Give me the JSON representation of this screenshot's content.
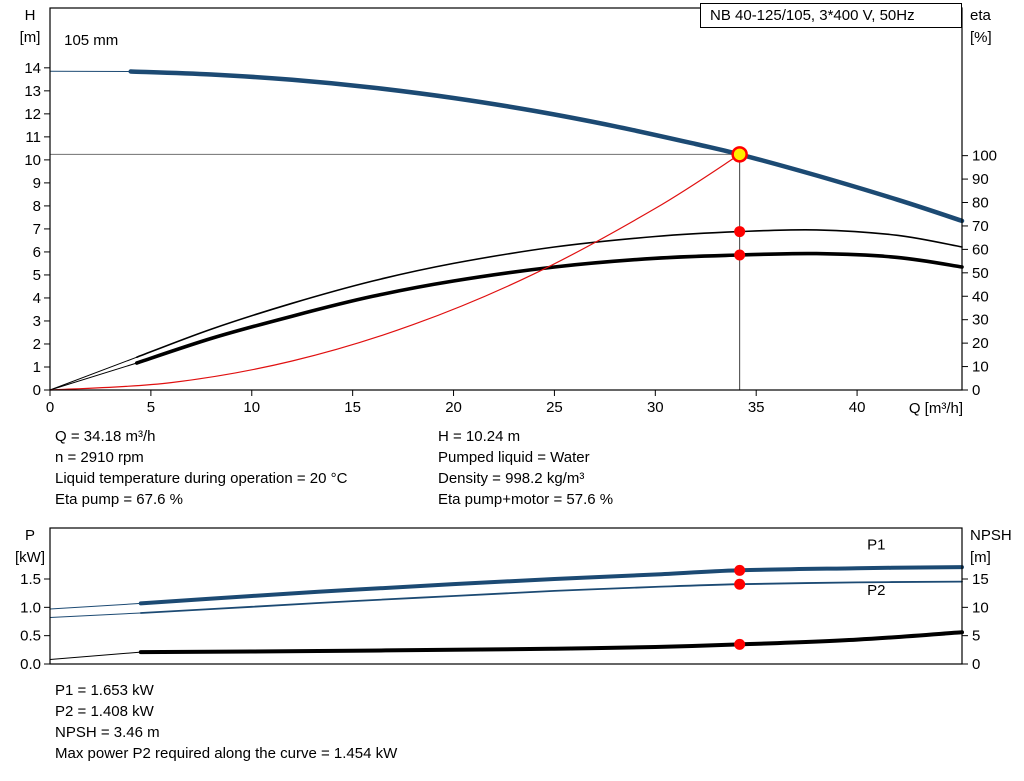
{
  "title_box": "NB 40-125/105, 3*400 V, 50Hz",
  "results_top": {
    "left": [
      "Q = 34.18 m³/h",
      "n = 2910 rpm",
      "Liquid temperature during operation = 20 °C",
      "Eta pump = 67.6 %"
    ],
    "right": [
      "H = 10.24 m",
      "Pumped liquid = Water",
      "Density = 998.2 kg/m³",
      "Eta pump+motor = 57.6 %"
    ]
  },
  "results_bottom": [
    "P1 = 1.653 kW",
    "P2 = 1.408 kW",
    "NPSH = 3.46 m",
    "Max power P2 required along the curve = 1.454 kW"
  ],
  "colors": {
    "curve_blue": "#1c4a73",
    "curve_black": "#000000",
    "system_red": "#e01010",
    "marker_red": "#ff0000",
    "duty_fill": "#ffee00",
    "ref_gray": "#707070",
    "label_blue": "#2a5caa"
  },
  "chart_data": [
    {
      "type": "line",
      "title": "NB 40-125/105, 3*400 V, 50Hz",
      "xlabel": "Q [m³/h]",
      "xlim": [
        0,
        45.2
      ],
      "x_ticks": [
        0,
        5,
        10,
        15,
        20,
        25,
        30,
        35,
        40
      ],
      "left_axis": {
        "label": "H",
        "unit": "[m]",
        "lim": [
          0,
          16.6
        ],
        "ticks": [
          0,
          1,
          2,
          3,
          4,
          5,
          6,
          7,
          8,
          9,
          10,
          11,
          12,
          13,
          14
        ]
      },
      "right_axis": {
        "label": "eta",
        "unit": "[%]",
        "lim": [
          0,
          163
        ],
        "ticks": [
          0,
          10,
          20,
          30,
          40,
          50,
          60,
          70,
          80,
          90,
          100
        ]
      },
      "grid": false,
      "curve_labels": [
        {
          "text": "105 mm",
          "x": 0.7,
          "y": 15.0,
          "axis": "left",
          "color": "#000000"
        }
      ],
      "ref_lines": {
        "q": 34.18,
        "h": 10.24
      },
      "series": [
        {
          "name": "head-curve-105mm",
          "axis": "left",
          "color": "curve_blue",
          "width": 4.5,
          "lead": {
            "x": [
              0,
              4
            ],
            "y": [
              13.85,
              13.84
            ]
          },
          "x": [
            4,
            8,
            12,
            16,
            20,
            24,
            28,
            32,
            34.18,
            38,
            42,
            45.2
          ],
          "y": [
            13.84,
            13.71,
            13.48,
            13.14,
            12.69,
            12.13,
            11.46,
            10.69,
            10.24,
            9.32,
            8.27,
            7.35
          ]
        },
        {
          "name": "eta-pump-curve",
          "axis": "right",
          "color": "curve_black",
          "width": 1.6,
          "lead": {
            "x": [
              0,
              4.3
            ],
            "y": [
              0,
              14
            ]
          },
          "x": [
            4.3,
            8,
            12,
            16,
            20,
            25,
            30,
            34.18,
            38,
            42,
            45.2
          ],
          "y": [
            14,
            26,
            37,
            46.5,
            54,
            61,
            65.5,
            67.6,
            68.3,
            66,
            61
          ]
        },
        {
          "name": "eta-pump-motor-curve",
          "axis": "right",
          "color": "curve_black",
          "width": 3.6,
          "lead": {
            "x": [
              0,
              4.3
            ],
            "y": [
              0,
              11.5
            ]
          },
          "x": [
            4.3,
            8,
            12,
            16,
            20,
            25,
            30,
            34.18,
            38,
            42,
            45.2
          ],
          "y": [
            11.5,
            22,
            31.5,
            40,
            46.5,
            52.5,
            56.2,
            57.6,
            58.2,
            56.6,
            52.5
          ]
        },
        {
          "name": "system-curve",
          "axis": "left",
          "color": "system_red",
          "width": 1.2,
          "x": [
            0,
            6,
            12,
            18,
            24,
            30,
            34.18
          ],
          "y": [
            0,
            0.32,
            1.26,
            2.84,
            5.05,
            7.89,
            10.24
          ]
        }
      ],
      "markers": [
        {
          "name": "duty-point",
          "x": 34.18,
          "y": 10.24,
          "axis": "left",
          "r": 7,
          "fill": "duty_fill",
          "stroke": "marker_red"
        },
        {
          "name": "eta-pump-point",
          "x": 34.18,
          "y": 67.6,
          "axis": "right",
          "r": 5.5,
          "fill": "marker_red"
        },
        {
          "name": "eta-pump-motor-point",
          "x": 34.18,
          "y": 57.6,
          "axis": "right",
          "r": 5.5,
          "fill": "marker_red"
        }
      ]
    },
    {
      "type": "line",
      "title": "",
      "xlabel": "",
      "xlim": [
        0,
        45.2
      ],
      "x_ticks": [],
      "left_axis": {
        "label": "P",
        "unit": "[kW]",
        "lim": [
          0,
          2.4
        ],
        "ticks": [
          0,
          0.5,
          1,
          1.5
        ],
        "tick_labels": [
          "0.0",
          "0.5",
          "1.0",
          "1.5"
        ]
      },
      "right_axis": {
        "label": "NPSH",
        "unit": "[m]",
        "lim": [
          0,
          24
        ],
        "ticks": [
          0,
          5,
          10,
          15
        ]
      },
      "grid": false,
      "curve_labels": [
        {
          "text": "P1",
          "x": 40.5,
          "y": 2.02,
          "axis": "left",
          "color": "label_blue"
        },
        {
          "text": "P2",
          "x": 40.5,
          "y": 1.22,
          "axis": "left",
          "color": "label_blue"
        }
      ],
      "series": [
        {
          "name": "P1-curve",
          "axis": "left",
          "color": "curve_blue",
          "width": 4,
          "lead": {
            "x": [
              0,
              4.5
            ],
            "y": [
              0.97,
              1.07
            ]
          },
          "x": [
            4.5,
            10,
            15,
            20,
            25,
            30,
            34.18,
            40,
            45.2
          ],
          "y": [
            1.07,
            1.2,
            1.31,
            1.41,
            1.5,
            1.58,
            1.653,
            1.69,
            1.71
          ]
        },
        {
          "name": "P2-curve",
          "axis": "left",
          "color": "curve_blue",
          "width": 1.8,
          "lead": {
            "x": [
              0,
              4.5
            ],
            "y": [
              0.82,
              0.9
            ]
          },
          "x": [
            4.5,
            10,
            15,
            20,
            25,
            30,
            34.18,
            40,
            45.2
          ],
          "y": [
            0.9,
            1.01,
            1.11,
            1.2,
            1.29,
            1.36,
            1.408,
            1.44,
            1.454
          ]
        },
        {
          "name": "NPSH-curve",
          "axis": "right",
          "color": "curve_black",
          "width": 4,
          "lead": {
            "x": [
              0,
              4.5
            ],
            "y": [
              0.8,
              2.1
            ]
          },
          "x": [
            4.5,
            10,
            15,
            20,
            25,
            30,
            34.18,
            40,
            45.2
          ],
          "y": [
            2.1,
            2.2,
            2.35,
            2.5,
            2.7,
            3.0,
            3.46,
            4.3,
            5.6
          ]
        }
      ],
      "markers": [
        {
          "name": "P1-point",
          "x": 34.18,
          "y": 1.653,
          "axis": "left",
          "r": 5.5,
          "fill": "marker_red"
        },
        {
          "name": "P2-point",
          "x": 34.18,
          "y": 1.408,
          "axis": "left",
          "r": 5.5,
          "fill": "marker_red"
        },
        {
          "name": "NPSH-point",
          "x": 34.18,
          "y": 3.46,
          "axis": "right",
          "r": 5.5,
          "fill": "marker_red"
        }
      ]
    }
  ]
}
